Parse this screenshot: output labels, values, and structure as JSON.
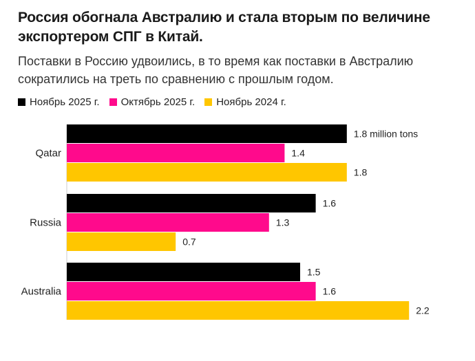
{
  "title": "Россия обогнала Австралию и стала вторым по величине экспортером СПГ в Китай.",
  "subtitle": "Поставки в Россию удвоились, в то время как поставки в Австралию сократились на треть по сравнению с прошлым годом.",
  "colors": {
    "series1": "#000000",
    "series2": "#ff0a8c",
    "series3": "#ffc600"
  },
  "chart_data": {
    "type": "bar",
    "orientation": "horizontal",
    "categories": [
      "Qatar",
      "Russia",
      "Australia"
    ],
    "series": [
      {
        "name": "Ноябрь 2025 г.",
        "values": [
          1.8,
          1.6,
          1.5
        ],
        "labels": [
          "1.8 million tons",
          "1.6",
          "1.5"
        ]
      },
      {
        "name": "Октябрь 2025 г.",
        "values": [
          1.4,
          1.3,
          1.6
        ],
        "labels": [
          "1.4",
          "1.3",
          "1.6"
        ]
      },
      {
        "name": "Ноябрь 2024 г.",
        "values": [
          1.8,
          0.7,
          2.2
        ],
        "labels": [
          "1.8",
          "0.7",
          "2.2"
        ]
      }
    ],
    "unit": "million tons",
    "xlim": [
      0,
      2.2
    ],
    "legend": "top-left",
    "grid": false
  }
}
